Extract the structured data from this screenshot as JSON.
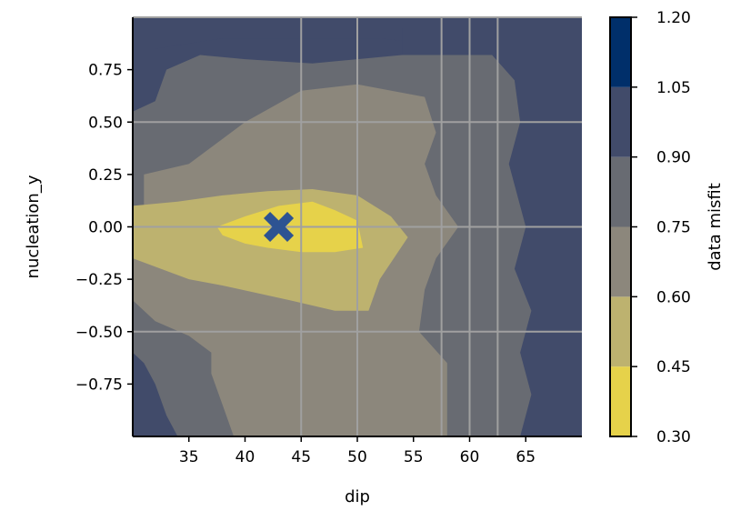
{
  "chart_data": {
    "type": "contour",
    "xlabel": "dip",
    "ylabel": "nucleation_y",
    "xlim": [
      30,
      70
    ],
    "ylim": [
      -1.0,
      1.0
    ],
    "xticks": [
      35,
      40,
      45,
      50,
      55,
      60,
      65
    ],
    "xtick_labels": [
      "35",
      "40",
      "45",
      "50",
      "55",
      "60",
      "65"
    ],
    "yticks": [
      0.75,
      0.5,
      0.25,
      0.0,
      -0.25,
      -0.5,
      -0.75
    ],
    "ytick_labels": [
      "0.75",
      "0.50",
      "0.25",
      "0.00",
      "−0.25",
      "−0.50",
      "−0.75"
    ],
    "gridlines_x": [
      45,
      50,
      57.5,
      60,
      62.5
    ],
    "gridlines_y": [
      0.5,
      0.0,
      -0.5
    ],
    "grid_color": "#a0a0a0",
    "colorbar": {
      "label": "data misfit",
      "levels": [
        0.3,
        0.45,
        0.6,
        0.75,
        0.9,
        1.05,
        1.2
      ],
      "tick_labels": [
        "0.30",
        "0.45",
        "0.60",
        "0.75",
        "0.90",
        "1.05",
        "1.20"
      ],
      "colors": [
        "#e6d24a",
        "#bdb26f",
        "#8c877c",
        "#686b72",
        "#414b6a",
        "#002f6a"
      ]
    },
    "best_fit_marker": {
      "x": 43,
      "y": 0.0,
      "symbol": "X",
      "color": "#2d5392"
    },
    "regions": [
      {
        "level": "0.90-1.05",
        "polygons": [
          [
            [
              30,
              -1
            ],
            [
              33,
              -1
            ],
            [
              34,
              -0.8
            ],
            [
              35,
              -0.7
            ],
            [
              36.5,
              -0.65
            ],
            [
              37,
              -0.55
            ],
            [
              36,
              -0.5
            ],
            [
              33,
              -0.45
            ],
            [
              30,
              -0.35
            ]
          ],
          [
            [
              30,
              1
            ],
            [
              70,
              1
            ],
            [
              70,
              -1
            ],
            [
              67,
              -1
            ],
            [
              66.5,
              -0.85
            ],
            [
              65.5,
              -0.75
            ],
            [
              66.5,
              -0.55
            ],
            [
              65.5,
              -0.4
            ],
            [
              66,
              -0.2
            ],
            [
              64.5,
              0
            ],
            [
              65.5,
              0.2
            ],
            [
              64.5,
              0.4
            ],
            [
              66,
              0.6
            ],
            [
              65.5,
              0.8
            ],
            [
              60,
              0.85
            ],
            [
              52,
              0.9
            ],
            [
              44,
              0.9
            ],
            [
              38,
              0.9
            ],
            [
              32,
              0.85
            ],
            [
              32,
              0.6
            ],
            [
              30,
              0.55
            ]
          ],
          [
            [
              54,
              0.95
            ],
            [
              54,
              -1
            ],
            [
              70,
              -1
            ],
            [
              70,
              0.95
            ]
          ]
        ]
      },
      {
        "level": "0.75-0.90",
        "polygons": [
          [
            [
              30,
              0.55
            ],
            [
              32,
              0.6
            ],
            [
              33,
              0.75
            ],
            [
              36,
              0.82
            ],
            [
              40,
              0.8
            ],
            [
              46,
              0.78
            ],
            [
              54,
              0.82
            ],
            [
              62,
              0.82
            ],
            [
              64,
              0.7
            ],
            [
              64.5,
              0.5
            ],
            [
              63.5,
              0.3
            ],
            [
              65,
              0
            ],
            [
              64,
              -0.2
            ],
            [
              65.5,
              -0.4
            ],
            [
              64.5,
              -0.6
            ],
            [
              65.5,
              -0.8
            ],
            [
              64.5,
              -1
            ],
            [
              34,
              -1
            ],
            [
              33,
              -0.9
            ],
            [
              32,
              -0.75
            ],
            [
              31,
              -0.65
            ],
            [
              30,
              -0.6
            ]
          ]
        ]
      },
      {
        "level": "0.60-0.75",
        "polygons": [
          [
            [
              31,
              0.25
            ],
            [
              35,
              0.3
            ],
            [
              40,
              0.5
            ],
            [
              45,
              0.65
            ],
            [
              50,
              0.68
            ],
            [
              56,
              0.62
            ],
            [
              57,
              0.45
            ],
            [
              56,
              0.3
            ],
            [
              57,
              0.15
            ],
            [
              59,
              0
            ],
            [
              57,
              -0.15
            ],
            [
              56,
              -0.3
            ],
            [
              55.5,
              -0.5
            ],
            [
              58,
              -0.65
            ],
            [
              58,
              -0.85
            ],
            [
              58,
              -1
            ],
            [
              39,
              -1
            ],
            [
              38,
              -0.85
            ],
            [
              37,
              -0.7
            ],
            [
              37,
              -0.6
            ],
            [
              35,
              -0.52
            ],
            [
              32,
              -0.45
            ],
            [
              30,
              -0.35
            ],
            [
              30,
              0.05
            ],
            [
              31,
              0.1
            ]
          ]
        ]
      },
      {
        "level": "0.45-0.60",
        "polygons": [
          [
            [
              30,
              0.1
            ],
            [
              34,
              0.12
            ],
            [
              38,
              0.15
            ],
            [
              42,
              0.17
            ],
            [
              46,
              0.18
            ],
            [
              50,
              0.15
            ],
            [
              53,
              0.05
            ],
            [
              54.5,
              -0.05
            ],
            [
              52,
              -0.25
            ],
            [
              51,
              -0.4
            ],
            [
              48,
              -0.4
            ],
            [
              44,
              -0.35
            ],
            [
              38,
              -0.28
            ],
            [
              35,
              -0.25
            ],
            [
              30,
              -0.15
            ]
          ]
        ]
      },
      {
        "level": "0.30-0.45",
        "polygons": [
          [
            [
              37.5,
              0
            ],
            [
              40,
              0.05
            ],
            [
              43,
              0.1
            ],
            [
              46,
              0.12
            ],
            [
              48,
              0.08
            ],
            [
              50,
              0.03
            ],
            [
              50.5,
              -0.1
            ],
            [
              48,
              -0.12
            ],
            [
              45,
              -0.12
            ],
            [
              42,
              -0.1
            ],
            [
              40,
              -0.08
            ],
            [
              38,
              -0.04
            ]
          ]
        ]
      }
    ]
  }
}
